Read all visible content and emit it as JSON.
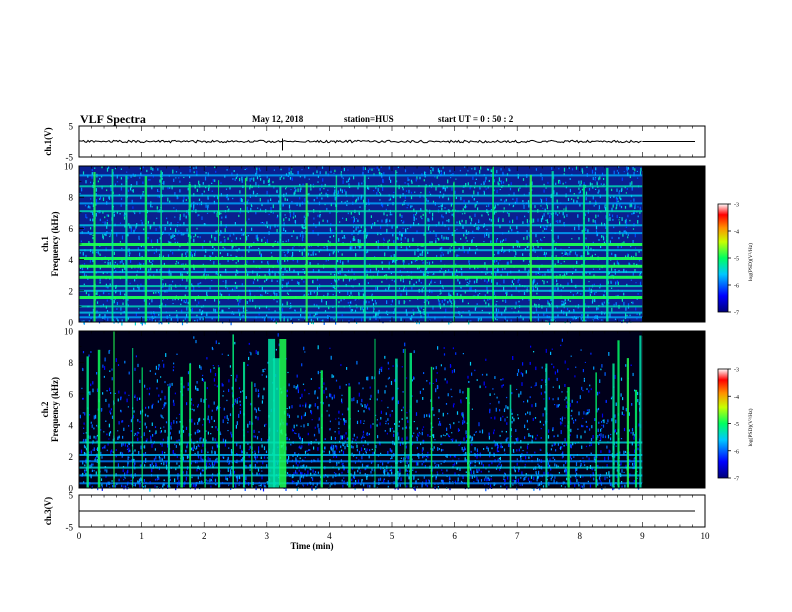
{
  "header": {
    "title": "VLF Spectra",
    "date": "May 12, 2018",
    "station": "station=HUS",
    "start": "start UT = 0 : 50 : 2"
  },
  "chart_data": {
    "type": "heatmap",
    "xlabel": "Time (min)",
    "xlim": [
      0,
      10
    ],
    "x_ticks": [
      "0",
      "1",
      "2",
      "3",
      "4",
      "5",
      "6",
      "7",
      "8",
      "9",
      "10"
    ],
    "data_end_min": 9.0,
    "panels": [
      {
        "id": "ch1-waveform",
        "type": "line",
        "ylabel": "ch.1(V)",
        "ylim": [
          -5,
          5
        ],
        "y_ticks": [
          "5",
          "-5"
        ],
        "level": 0
      },
      {
        "id": "ch1-spectrogram",
        "type": "heatmap",
        "ylabel_top": "ch.1",
        "ylabel": "Frequency (kHz)",
        "ylim": [
          0,
          10
        ],
        "y_ticks": [
          "0",
          "2",
          "4",
          "6",
          "8",
          "10"
        ],
        "colorbar": {
          "label": "log(PSD)(V²/Hz)",
          "range": [
            -7,
            -3
          ],
          "ticks": [
            "-3",
            "-4",
            "-5",
            "-6",
            "-7"
          ]
        },
        "bands_khz": [
          0.3,
          0.6,
          1.0,
          1.6,
          2.0,
          2.3,
          2.9,
          3.2,
          3.6,
          4.1,
          4.6,
          5.0,
          5.7,
          6.2,
          7.1,
          7.6,
          8.1,
          8.7,
          9.4
        ],
        "bright_bands_khz": [
          1.6,
          2.9,
          3.6,
          4.1,
          5.0
        ],
        "bursts_min": [
          0.23,
          0.52,
          0.74,
          1.05,
          1.3,
          1.75,
          2.22,
          2.65,
          3.2,
          3.62,
          4.1,
          4.55,
          5.05,
          5.52,
          5.98,
          6.6,
          7.2,
          7.55,
          8.05,
          8.42
        ]
      },
      {
        "id": "ch2-spectrogram",
        "type": "heatmap",
        "ylabel_top": "ch.2",
        "ylabel": "Frequency (kHz)",
        "ylim": [
          0,
          10
        ],
        "y_ticks": [
          "0",
          "2",
          "4",
          "6",
          "8",
          "10"
        ],
        "colorbar": {
          "label": "log(PSD)(V²/Hz)",
          "range": [
            -7,
            -3
          ],
          "ticks": [
            "-3",
            "-4",
            "-5",
            "-6",
            "-7"
          ]
        },
        "bands_khz": [
          0.3,
          0.8,
          1.3,
          1.7,
          2.1,
          2.9
        ],
        "bursts_min": [
          0.12,
          0.3,
          0.55,
          0.85,
          1.0,
          1.42,
          1.62,
          1.76,
          2.0,
          2.22,
          2.45,
          2.62,
          2.75,
          3.02,
          3.1,
          3.2,
          3.86,
          4.3,
          4.72,
          5.05,
          5.2,
          5.28,
          5.62,
          6.2,
          6.88,
          7.45,
          7.8,
          8.25,
          8.52,
          8.6,
          8.75,
          8.88,
          8.95
        ]
      },
      {
        "id": "ch3-waveform",
        "type": "line",
        "ylabel": "ch.3(V)",
        "ylim": [
          -5,
          5
        ],
        "y_ticks": [
          "5",
          "-5"
        ],
        "level": 0
      }
    ]
  }
}
